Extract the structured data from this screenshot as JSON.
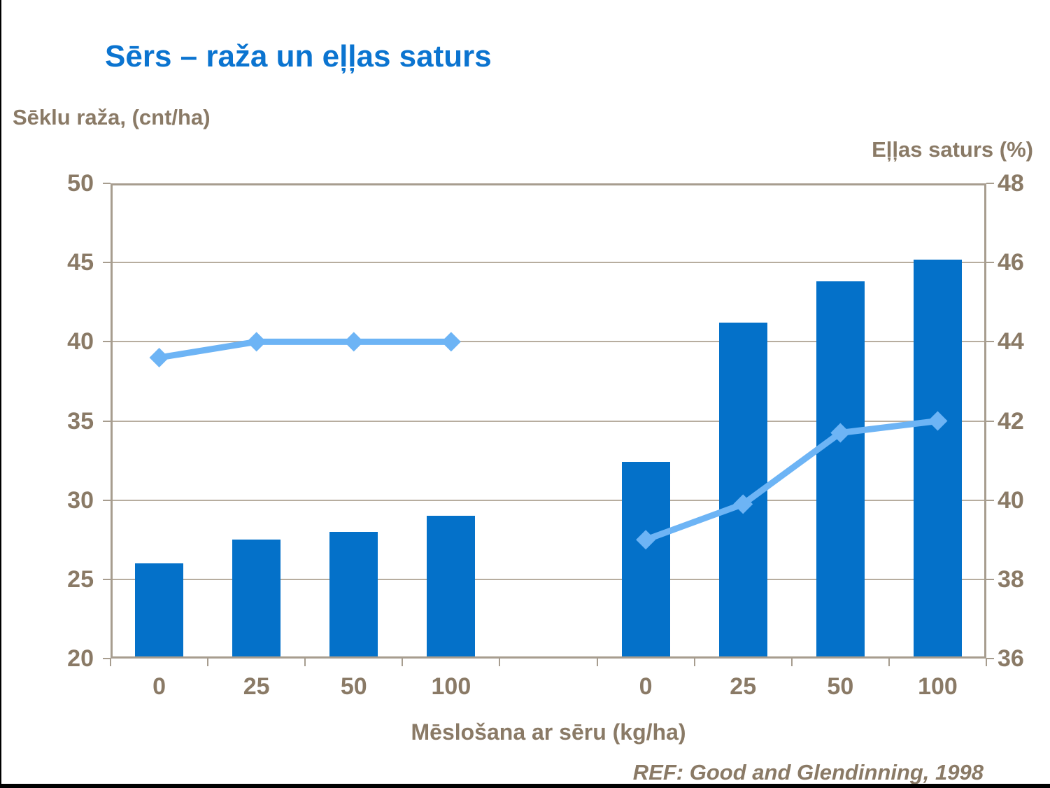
{
  "slide": {
    "title": "Sērs – raža un eļļas saturs",
    "footer_ref": "REF: Good and Glendinning, 1998"
  },
  "chart_data": {
    "type": "combo-bar-line",
    "title": "Sērs – raža un eļļas saturs",
    "left_axis": {
      "label": "Sēklu raža, (cnt/ha)",
      "min": 20,
      "max": 50,
      "step": 5,
      "ticks": [
        50,
        45,
        40,
        35,
        30,
        25,
        20
      ]
    },
    "right_axis": {
      "label": "Eļļas saturs (%)",
      "min": 36,
      "max": 48,
      "step": 2,
      "ticks": [
        48,
        46,
        44,
        42,
        40,
        38,
        36
      ]
    },
    "x_axis": {
      "label": "Mēslošana ar sēru (kg/ha)"
    },
    "groups": [
      {
        "categories": [
          "0",
          "25",
          "50",
          "100"
        ],
        "bar_values_left_axis": [
          26,
          27.5,
          28,
          29
        ],
        "line_values_right_axis": [
          43.6,
          44.0,
          44.0,
          44.0
        ]
      },
      {
        "categories": [
          "0",
          "25",
          "50",
          "100"
        ],
        "bar_values_left_axis": [
          32.4,
          41.2,
          43.8,
          45.2
        ],
        "line_values_right_axis": [
          39.0,
          39.9,
          41.7,
          42.0
        ]
      }
    ],
    "grid": true,
    "legend": false,
    "colors": {
      "bar": "#0471c9",
      "line": "#6db4f5",
      "title": "#0b74d0",
      "axis_text": "#8a7a66",
      "frame": "#a79d8f",
      "gridline": "#b7ad9f",
      "border": "#000000"
    }
  }
}
